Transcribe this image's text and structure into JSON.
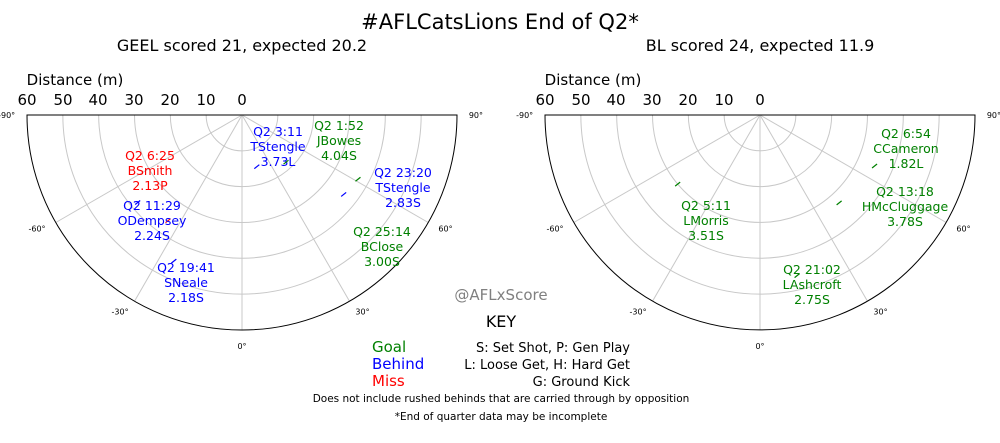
{
  "title": "#AFLCatsLions End of Q2*",
  "colors": {
    "goal": "#008000",
    "behind": "#0000ff",
    "miss": "#ff0000",
    "grid": "#c8c8c8",
    "watermark": "#808080"
  },
  "chart_data": [
    {
      "type": "scatter",
      "subtitle": "GEEL scored 21, expected 20.2",
      "r_axis_label": "Distance (m)",
      "r_tick_labels": [
        "60",
        "50",
        "40",
        "30",
        "20",
        "10",
        "0"
      ],
      "angle_tick_labels": [
        "-90°",
        "-60°",
        "-30°",
        "0°",
        "30°",
        "60°",
        "90°"
      ],
      "r_range": [
        0,
        60
      ],
      "angle_range": [
        -90,
        90
      ],
      "grid": true,
      "points": [
        {
          "label": [
            "Q2 6:25",
            "BSmith",
            "2.13P"
          ],
          "result": "miss",
          "r": 36,
          "theta": -35
        },
        {
          "label": [
            "Q2 11:29",
            "ODempsey",
            "2.24S"
          ],
          "result": "behind",
          "r": 38,
          "theta": -50
        },
        {
          "label": [
            "Q2 19:41",
            "SNeale",
            "2.18S"
          ],
          "result": "behind",
          "r": 45,
          "theta": -25
        },
        {
          "label": [
            "Q2 3:11",
            "TStengle",
            "3.73L"
          ],
          "result": "behind",
          "r": 15,
          "theta": 16
        },
        {
          "label": [
            "Q2 1:52",
            "JBowes",
            "4.04S"
          ],
          "result": "goal",
          "r": 18,
          "theta": 43
        },
        {
          "label": [
            "Q2 23:20",
            "TStengle",
            "2.83S"
          ],
          "result": "behind",
          "r": 36,
          "theta": 52
        },
        {
          "label": [
            "Q2 25:14",
            "BClose",
            "3.00S"
          ],
          "result": "goal",
          "r": 37,
          "theta": 61
        }
      ]
    },
    {
      "type": "scatter",
      "subtitle": "BL scored 24, expected 11.9",
      "r_axis_label": "Distance (m)",
      "r_tick_labels": [
        "60",
        "50",
        "40",
        "30",
        "20",
        "10",
        "0"
      ],
      "angle_tick_labels": [
        "-90°",
        "-60°",
        "-30°",
        "0°",
        "30°",
        "60°",
        "90°"
      ],
      "r_range": [
        0,
        60
      ],
      "angle_range": [
        -90,
        90
      ],
      "grid": true,
      "points": [
        {
          "label": [
            "Q2 5:11",
            "LMorris",
            "3.51S"
          ],
          "result": "goal",
          "r": 30,
          "theta": -50
        },
        {
          "label": [
            "Q2 21:02",
            "LAshcroft",
            "2.75S"
          ],
          "result": "goal",
          "r": 46,
          "theta": 13
        },
        {
          "label": [
            "Q2 6:54",
            "CCameron",
            "1.82L"
          ],
          "result": "goal",
          "r": 35,
          "theta": 66
        },
        {
          "label": [
            "Q2 13:18",
            "HMcCluggage",
            "3.78S"
          ],
          "result": "goal",
          "r": 33,
          "theta": 42
        }
      ]
    }
  ],
  "watermark": "@AFLxScore",
  "key": {
    "title": "KEY",
    "results": [
      {
        "text": "Goal",
        "result": "goal"
      },
      {
        "text": "Behind",
        "result": "behind"
      },
      {
        "text": "Miss",
        "result": "miss"
      }
    ],
    "codes": [
      "S: Set Shot, P: Gen Play",
      "L: Loose Get, H: Hard Get",
      "G: Ground Kick"
    ]
  },
  "footnotes": [
    "Does not include rushed behinds that are carried through by opposition",
    "*End of quarter data may be incomplete"
  ]
}
